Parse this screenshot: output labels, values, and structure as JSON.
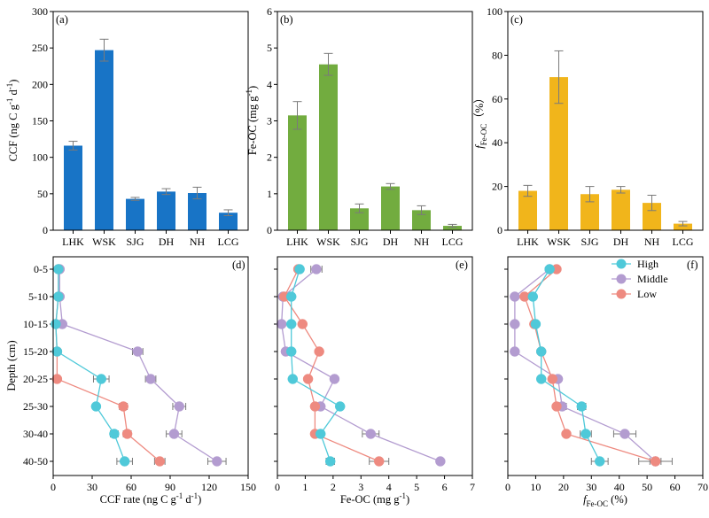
{
  "colors": {
    "ccf_bar": "#1874c6",
    "feoc_bar": "#72ac3f",
    "ffeoc_bar": "#f1b51b",
    "high": "#4fc9d9",
    "middle": "#b39cd0",
    "low": "#ee8a80",
    "error": "#7a7a7a"
  },
  "legend": {
    "high": "High",
    "middle": "Middle",
    "low": "Low"
  },
  "chart_data": [
    {
      "id": "a",
      "panel_label": "(a)",
      "type": "bar",
      "ylabel": "CCF (ng C g-1 d-1)",
      "ylabel_main": "CCF (ng C g",
      "ylabel_sup1": "-1",
      "ylabel_mid": " d",
      "ylabel_sup2": "-1",
      "ylabel_end": ")",
      "categories": [
        "LHK",
        "WSK",
        "SJG",
        "DH",
        "NH",
        "LCG"
      ],
      "values": [
        116,
        247,
        43,
        53,
        51,
        24
      ],
      "errors": [
        6,
        15,
        2,
        4,
        8,
        4
      ],
      "ylim": [
        0,
        300
      ],
      "yticks": [
        0,
        50,
        100,
        150,
        200,
        250,
        300
      ],
      "ytick_labels": [
        "0",
        "50",
        "100",
        "150",
        "200",
        "250",
        "300"
      ]
    },
    {
      "id": "b",
      "panel_label": "(b)",
      "type": "bar",
      "ylabel": "Fe-OC (mg g-1)",
      "ylabel_main": "Fe-OC (mg g",
      "ylabel_sup1": "-1",
      "ylabel_end": ")",
      "categories": [
        "LHK",
        "WSK",
        "SJG",
        "DH",
        "NH",
        "LCG"
      ],
      "values": [
        3.15,
        4.55,
        0.6,
        1.2,
        0.55,
        0.12
      ],
      "errors": [
        0.38,
        0.3,
        0.12,
        0.08,
        0.12,
        0.04
      ],
      "ylim": [
        0,
        6
      ],
      "yticks": [
        0,
        1,
        2,
        3,
        4,
        5,
        6
      ],
      "ytick_labels": [
        "0",
        "1",
        "2",
        "3",
        "4",
        "5",
        "6"
      ]
    },
    {
      "id": "c",
      "panel_label": "(c)",
      "type": "bar",
      "ylabel": "fFe-OC (%)",
      "ylabel_main": "f",
      "ylabel_sub": "Fe-OC",
      "ylabel_end": "（%）",
      "categories": [
        "LHK",
        "WSK",
        "SJG",
        "DH",
        "NH",
        "LCG"
      ],
      "values": [
        18,
        70,
        16.5,
        18.5,
        12.5,
        3
      ],
      "errors": [
        2.5,
        12,
        3.5,
        1.5,
        3.5,
        1
      ],
      "ylim": [
        0,
        100
      ],
      "yticks": [
        0,
        20,
        40,
        60,
        80,
        100
      ],
      "ytick_labels": [
        "0",
        "20",
        "40",
        "60",
        "80",
        "100"
      ]
    },
    {
      "id": "d",
      "panel_label": "(d)",
      "type": "line",
      "xlabel": "CCF rate (ng C g-1 d-1)",
      "xlabel_main": "CCF rate (ng C g",
      "xlabel_sup1": "-1",
      "xlabel_mid": " d",
      "xlabel_sup2": "-1",
      "xlabel_end": ")",
      "ylabel": "Depth (cm)",
      "depth_labels": [
        "0-5",
        "5-10",
        "10-15",
        "15-20",
        "20-25",
        "25-30",
        "30-40",
        "40-50"
      ],
      "xlim": [
        0,
        150
      ],
      "xticks": [
        0,
        30,
        60,
        90,
        120,
        150
      ],
      "xtick_labels": [
        "0",
        "30",
        "60",
        "90",
        "120",
        "150"
      ],
      "series": [
        {
          "name": "High",
          "values": [
            4,
            4,
            2,
            3,
            37,
            33,
            47,
            55
          ],
          "errors": [
            2,
            2,
            1,
            1,
            6,
            2,
            3,
            6
          ]
        },
        {
          "name": "Middle",
          "values": [
            5,
            5,
            7,
            65,
            75,
            97,
            93,
            126
          ],
          "errors": [
            2,
            2,
            2,
            4,
            4,
            5,
            6,
            7
          ]
        },
        {
          "name": "Low",
          "values": [
            4,
            4,
            2,
            3,
            3,
            54,
            57,
            82
          ],
          "errors": [
            1,
            1,
            1,
            1,
            1,
            3,
            3,
            4
          ]
        }
      ]
    },
    {
      "id": "e",
      "panel_label": "(e)",
      "type": "line",
      "xlabel": "Fe-OC (mg g-1)",
      "xlabel_main": "Fe-OC (mg g",
      "xlabel_sup1": "-1",
      "xlabel_end": ")",
      "depth_labels": [
        "0-5",
        "5-10",
        "10-15",
        "15-20",
        "20-25",
        "25-30",
        "30-40",
        "40-50"
      ],
      "xlim": [
        0,
        7
      ],
      "xticks": [
        0,
        1,
        2,
        3,
        4,
        5,
        6,
        7
      ],
      "xtick_labels": [
        "0",
        "1",
        "2",
        "3",
        "4",
        "5",
        "6",
        "7"
      ],
      "series": [
        {
          "name": "High",
          "values": [
            0.8,
            0.5,
            0.5,
            0.5,
            0.55,
            2.25,
            1.55,
            1.9
          ],
          "errors": [
            0.1,
            0.08,
            0.08,
            0.08,
            0.08,
            0.1,
            0.1,
            0.15
          ]
        },
        {
          "name": "Middle",
          "values": [
            1.4,
            0.2,
            0.15,
            0.3,
            2.05,
            1.55,
            3.35,
            5.85
          ],
          "errors": [
            0.2,
            0.05,
            0.05,
            0.05,
            0.1,
            0.1,
            0.3,
            0.1
          ]
        },
        {
          "name": "Low",
          "values": [
            0.75,
            0.25,
            0.9,
            1.5,
            1.1,
            1.35,
            1.35,
            3.65
          ],
          "errors": [
            0.05,
            0.05,
            0.05,
            0.1,
            0.08,
            0.08,
            0.08,
            0.35
          ]
        }
      ]
    },
    {
      "id": "f",
      "panel_label": "(f)",
      "type": "line",
      "xlabel": "fFe-OC (%)",
      "xlabel_main": "f",
      "xlabel_sub": "Fe-OC",
      "xlabel_end": " (%)",
      "depth_labels": [
        "0-5",
        "5-10",
        "10-15",
        "15-20",
        "20-25",
        "25-30",
        "30-40",
        "40-50"
      ],
      "xlim": [
        0,
        70
      ],
      "xticks": [
        0,
        10,
        20,
        30,
        40,
        50,
        60,
        70
      ],
      "xtick_labels": [
        "0",
        "10",
        "20",
        "30",
        "40",
        "50",
        "60",
        "70"
      ],
      "series": [
        {
          "name": "High",
          "values": [
            15,
            9,
            10,
            12,
            12,
            26.5,
            28,
            33
          ],
          "errors": [
            1,
            1,
            1,
            1,
            1,
            1.5,
            2,
            3
          ]
        },
        {
          "name": "Middle",
          "values": [
            15,
            2.5,
            2.5,
            2.5,
            18,
            19.5,
            42,
            53
          ],
          "errors": [
            1,
            0.5,
            0.5,
            0.5,
            1,
            1.5,
            4,
            6
          ]
        },
        {
          "name": "Low",
          "values": [
            17.5,
            6,
            9.5,
            12,
            16,
            17.5,
            21,
            53
          ],
          "errors": [
            1,
            1,
            1,
            1,
            1,
            1,
            1,
            2
          ]
        }
      ]
    }
  ]
}
